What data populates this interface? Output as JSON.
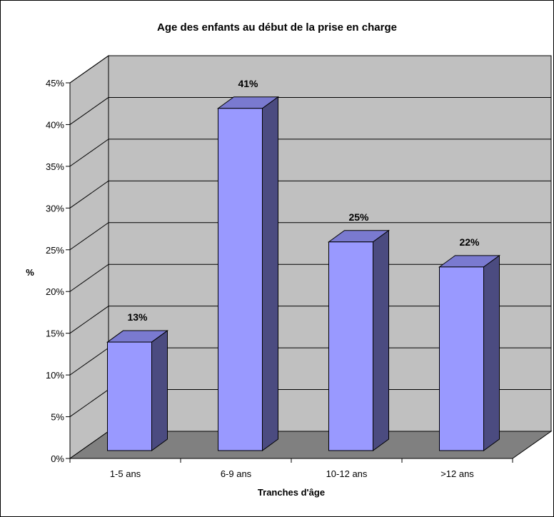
{
  "chart_data": {
    "type": "bar",
    "title": "Age des enfants au début de la prise en charge",
    "xlabel": "Tranches d'âge",
    "ylabel": "%",
    "categories": [
      "1-5 ans",
      "6-9 ans",
      "10-12 ans",
      ">12 ans"
    ],
    "values": [
      13,
      41,
      25,
      22
    ],
    "data_labels": [
      "13%",
      "41%",
      "25%",
      "22%"
    ],
    "ylim": [
      0,
      45
    ],
    "yticks": [
      0,
      5,
      10,
      15,
      20,
      25,
      30,
      35,
      40,
      45
    ],
    "ytick_labels": [
      "0%",
      "5%",
      "10%",
      "15%",
      "20%",
      "25%",
      "30%",
      "35%",
      "40%",
      "45%"
    ],
    "grid": true,
    "legend": "none",
    "three_d": true,
    "colors": {
      "bar_front": "#9999ff",
      "bar_side": "#4b4b80",
      "bar_top": "#7a7ad0",
      "wall": "#c0c0c0",
      "floor": "#808080",
      "gridline": "#000000"
    }
  }
}
